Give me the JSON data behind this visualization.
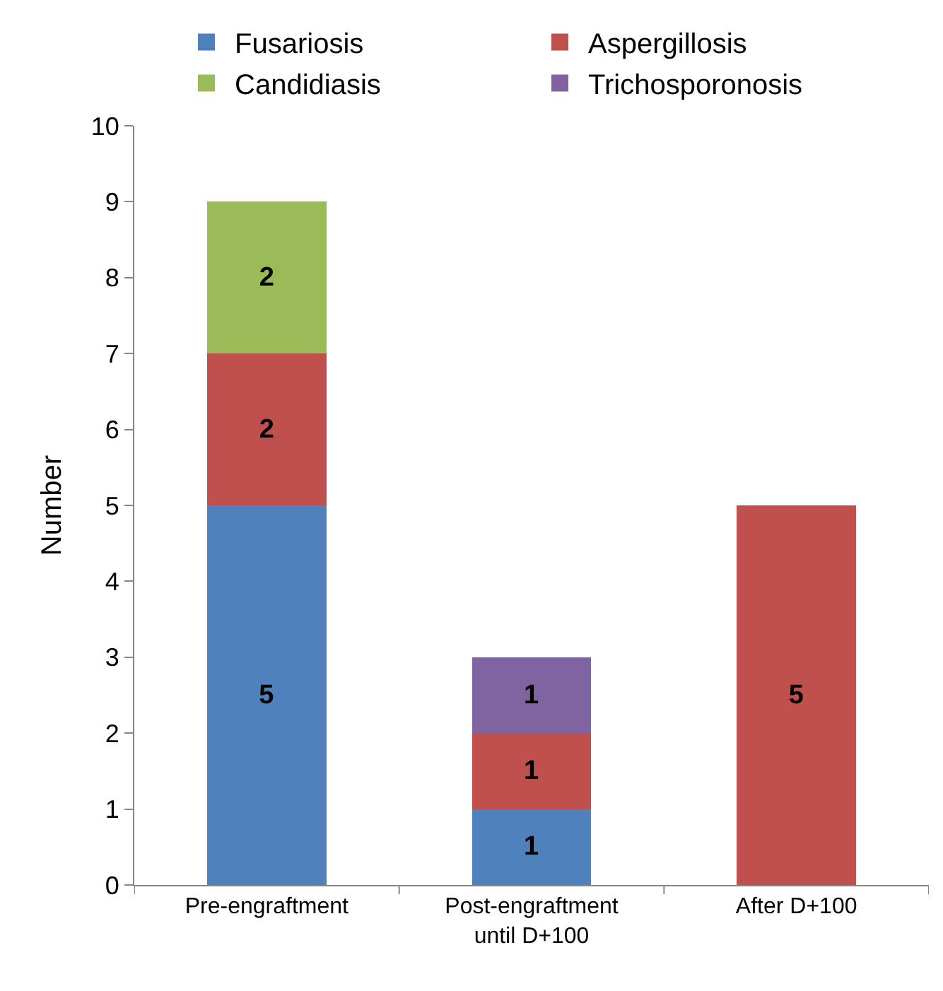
{
  "chart_data": {
    "type": "bar",
    "stacked": true,
    "ylabel": "Number",
    "categories": [
      "Pre-engraftment",
      "Post-engraftment\nuntil D+100",
      "After D+100"
    ],
    "series": [
      {
        "name": "Fusariosis",
        "color": "#4f81bd",
        "values": [
          5,
          1,
          null
        ]
      },
      {
        "name": "Aspergillosis",
        "color": "#c0504d",
        "values": [
          2,
          1,
          5
        ]
      },
      {
        "name": "Candidiasis",
        "color": "#9bbb59",
        "values": [
          2,
          null,
          null
        ]
      },
      {
        "name": "Trichosporonosis",
        "color": "#8064a2",
        "values": [
          null,
          1,
          null
        ]
      }
    ],
    "ylim": [
      0,
      10
    ],
    "yticks": [
      0,
      1,
      2,
      3,
      4,
      5,
      6,
      7,
      8,
      9,
      10
    ],
    "legend": "top",
    "data_labels": true
  }
}
